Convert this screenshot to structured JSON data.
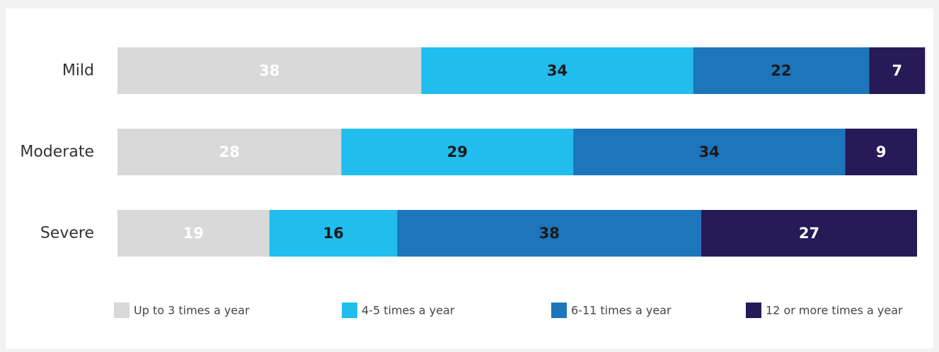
{
  "chart_data": {
    "type": "bar",
    "orientation": "horizontal",
    "stacked": true,
    "categories": [
      "Mild",
      "Moderate",
      "Severe"
    ],
    "series": [
      {
        "name": "Up to 3 times a year",
        "values": [
          38,
          28,
          19
        ],
        "color": "#d9d9d9",
        "label_color": "#ffffff"
      },
      {
        "name": "4-5 times a year",
        "values": [
          34,
          29,
          16
        ],
        "color": "#21bdee",
        "label_color": "#1a1a1a"
      },
      {
        "name": "6-11 times a year",
        "values": [
          22,
          34,
          38
        ],
        "color": "#1d75bb",
        "label_color": "#1a1a1a"
      },
      {
        "name": "12 or more times a year",
        "values": [
          7,
          9,
          27
        ],
        "color": "#261a57",
        "label_color": "#ffffff"
      }
    ],
    "legend_position": "bottom",
    "grid": false
  }
}
